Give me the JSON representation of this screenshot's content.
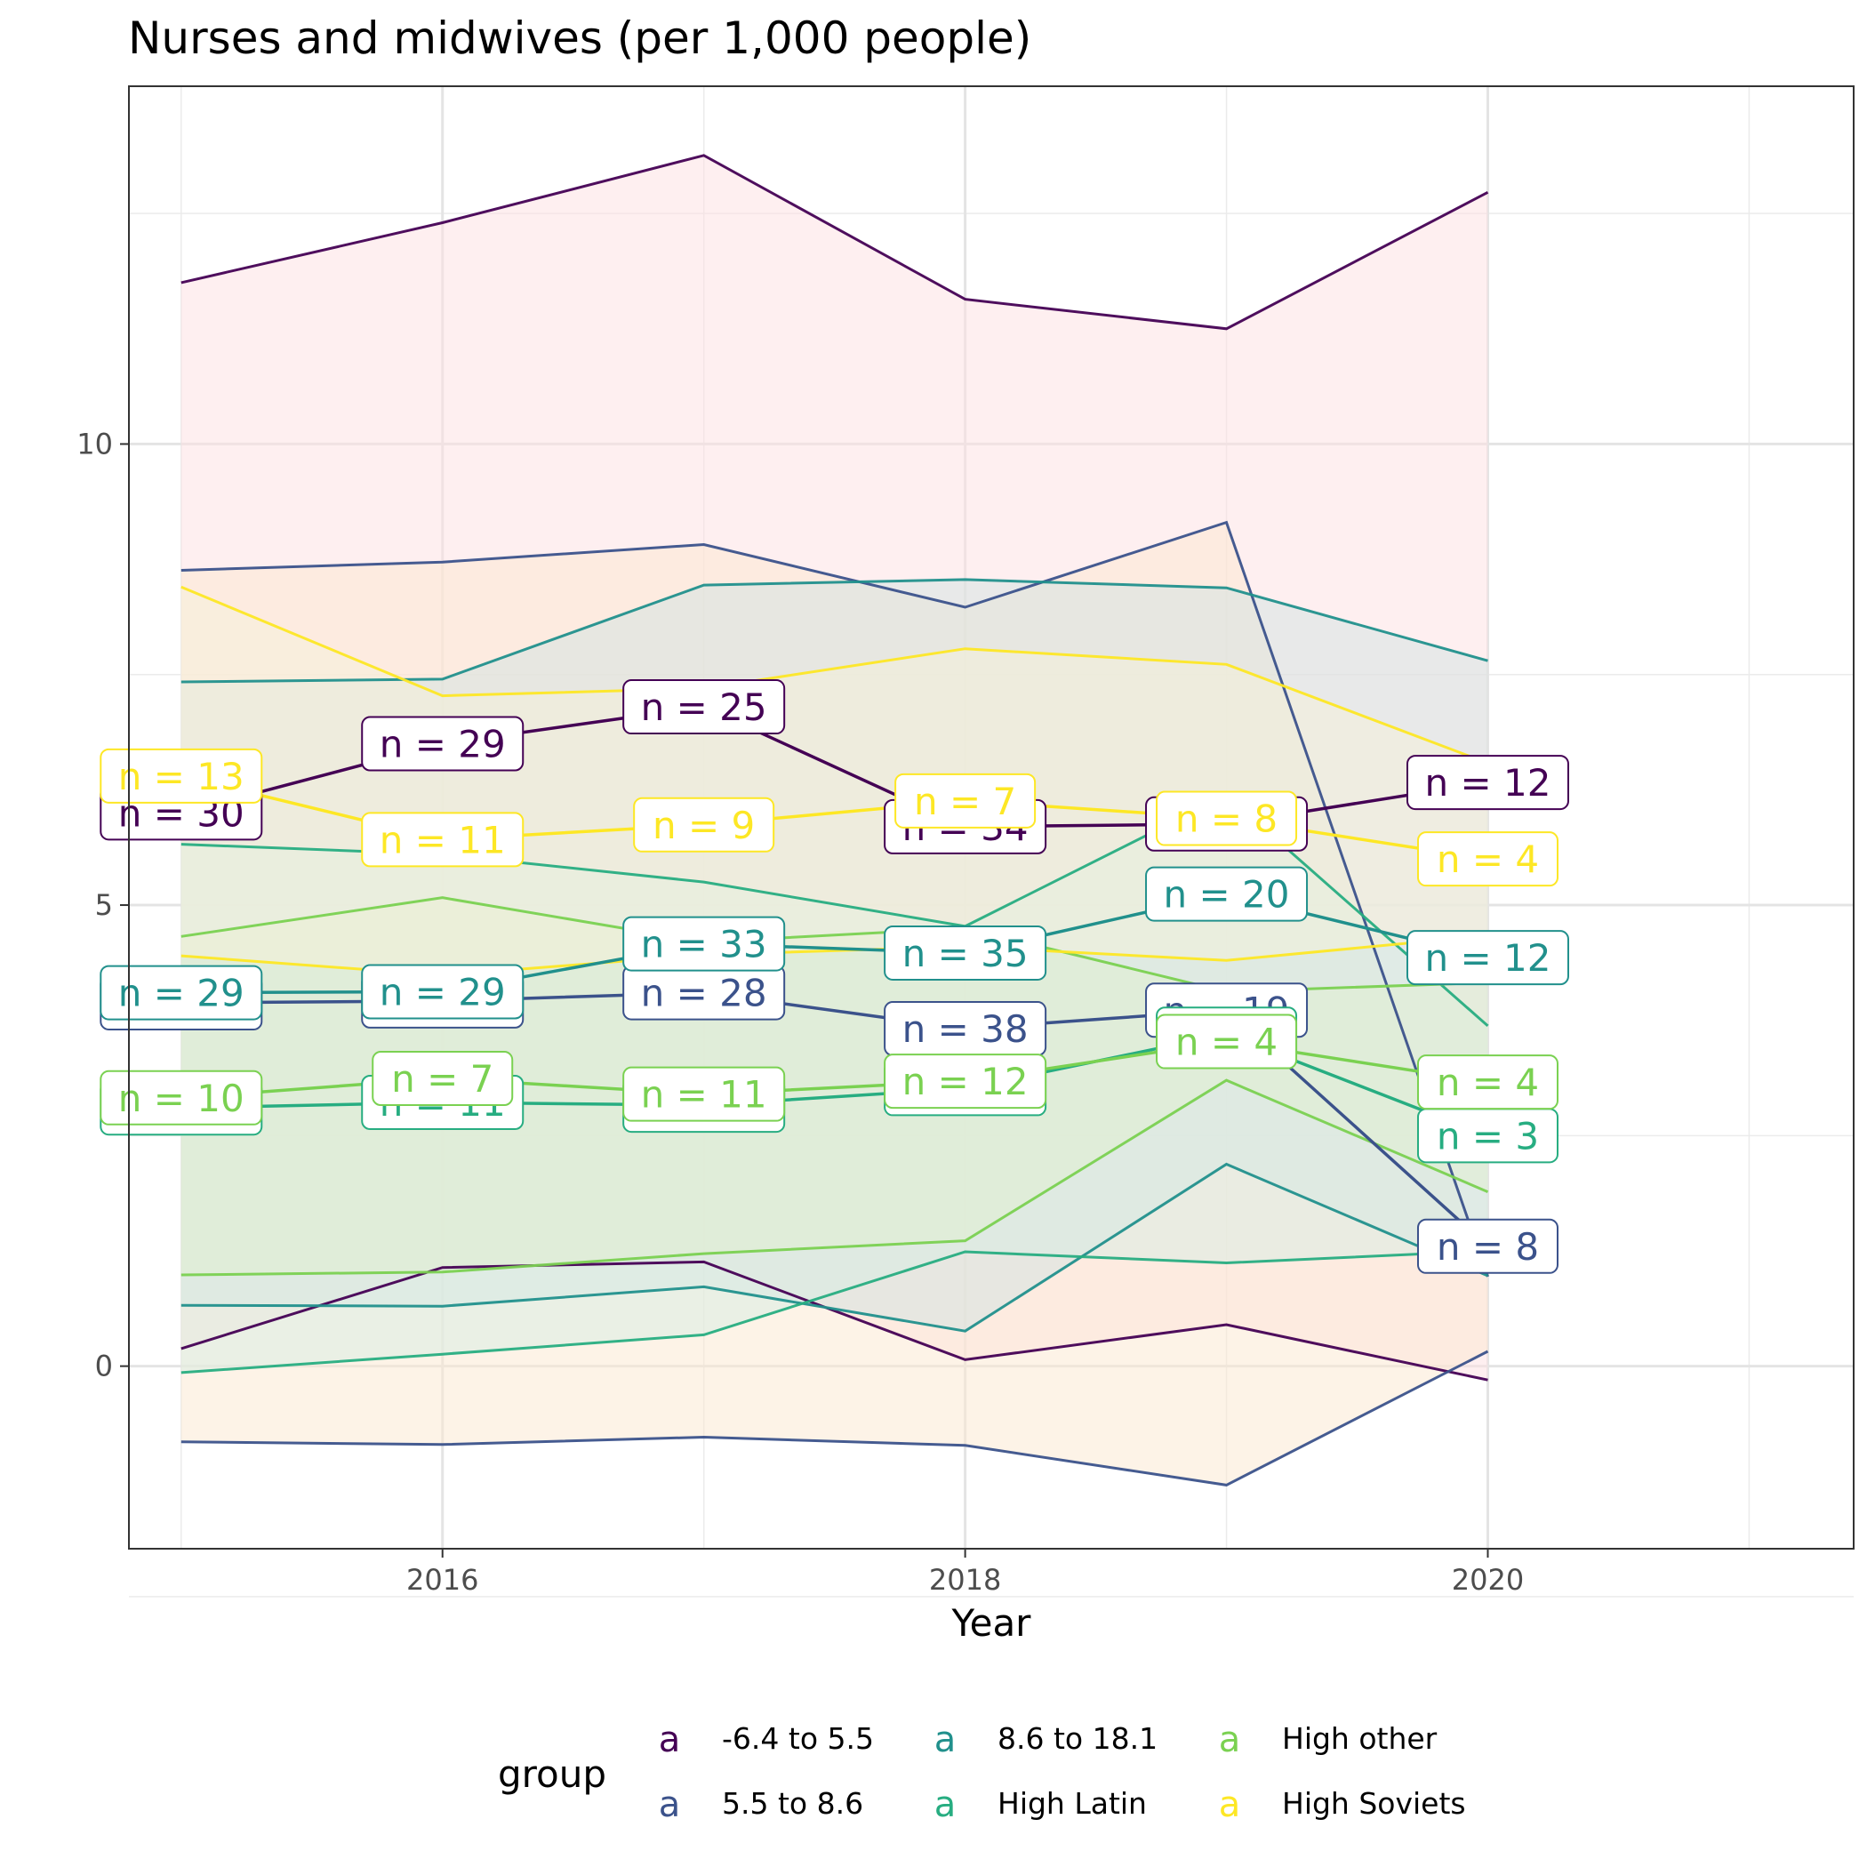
{
  "chart_data": {
    "type": "line",
    "title": "Nurses and midwives (per 1,000 people)",
    "xlabel": "Year",
    "ylabel": "",
    "xlim": [
      2014.8,
      2021.4
    ],
    "ylim": [
      -1.98,
      13.88
    ],
    "x_ticks": [
      2016,
      2018,
      2020
    ],
    "y_ticks": [
      0,
      5,
      10
    ],
    "grid": true,
    "legend": {
      "title": "group",
      "position": "bottom",
      "key_glyph": "a",
      "entries": [
        "-6.4 to 5.5",
        "5.5 to 8.6",
        "8.6 to 18.1",
        "High Latin",
        "High other",
        "High Soviets"
      ]
    },
    "x": [
      2015,
      2016,
      2017,
      2018,
      2019,
      2020
    ],
    "series": [
      {
        "name": "-6.4 to 5.5",
        "color": "#440154",
        "fill": "#fde0e1",
        "mean": [
          6.0,
          6.75,
          7.15,
          5.85,
          5.88,
          6.33
        ],
        "upper": [
          11.75,
          12.4,
          13.13,
          11.57,
          11.25,
          12.73
        ],
        "lower": [
          0.19,
          1.07,
          1.13,
          0.07,
          0.45,
          -0.15
        ],
        "labels": [
          "n = 30",
          "n = 29",
          "n = 25",
          "n = 34",
          "n = 38",
          "n = 12"
        ]
      },
      {
        "name": "5.5 to 8.6",
        "color": "#3b528b",
        "fill": "#fbe8cf",
        "mean": [
          3.94,
          3.96,
          4.05,
          3.66,
          3.86,
          1.3
        ],
        "upper": [
          8.63,
          8.72,
          8.91,
          8.23,
          9.15,
          0.97
        ],
        "lower": [
          -0.82,
          -0.85,
          -0.77,
          -0.86,
          -1.29,
          0.16
        ],
        "labels": [
          "n = 27",
          "n = 28",
          "n = 28",
          "n = 38",
          "n = 19",
          "n = 8"
        ]
      },
      {
        "name": "8.6 to 18.1",
        "color": "#21908c",
        "fill": "#d2e3e1",
        "mean": [
          4.05,
          4.06,
          4.58,
          4.48,
          5.12,
          4.43
        ],
        "upper": [
          7.42,
          7.45,
          8.47,
          8.53,
          8.44,
          7.65
        ],
        "lower": [
          0.66,
          0.65,
          0.86,
          0.38,
          2.19,
          0.98
        ],
        "labels": [
          "n = 29",
          "n = 29",
          "n = 33",
          "n = 35",
          "n = 20",
          "n = 12"
        ]
      },
      {
        "name": "High Latin",
        "color": "#27ad81",
        "fill": "#d8eee3",
        "mean": [
          2.8,
          2.86,
          2.83,
          3.01,
          3.6,
          2.5
        ],
        "upper": [
          5.66,
          5.55,
          5.25,
          4.77,
          6.19,
          3.69
        ],
        "lower": [
          -0.07,
          0.13,
          0.34,
          1.24,
          1.12,
          1.25
        ],
        "labels": [
          "n = 12",
          "n = 11",
          "n = 10",
          "n = 13",
          "n = 9",
          "n = 3"
        ]
      },
      {
        "name": "High other",
        "color": "#7ad151",
        "fill": "#e1efcf",
        "mean": [
          2.91,
          3.12,
          2.95,
          3.09,
          3.52,
          3.08
        ],
        "upper": [
          4.66,
          5.08,
          4.6,
          4.75,
          4.06,
          4.16
        ],
        "lower": [
          0.99,
          1.02,
          1.22,
          1.36,
          3.1,
          1.89
        ],
        "labels": [
          "n = 10",
          "n = 7",
          "n = 11",
          "n = 12",
          "n = 4",
          "n = 4"
        ]
      },
      {
        "name": "High Soviets",
        "color": "#fde725",
        "fill": "#f6f2da",
        "mean": [
          6.4,
          5.71,
          5.87,
          6.13,
          5.94,
          5.5
        ],
        "upper": [
          8.45,
          7.27,
          7.35,
          7.78,
          7.61,
          6.54
        ],
        "lower": [
          4.45,
          4.24,
          4.46,
          4.55,
          4.4,
          4.67
        ],
        "labels": [
          "n = 13",
          "n = 11",
          "n = 9",
          "n = 7",
          "n = 8",
          "n = 4"
        ]
      }
    ]
  }
}
